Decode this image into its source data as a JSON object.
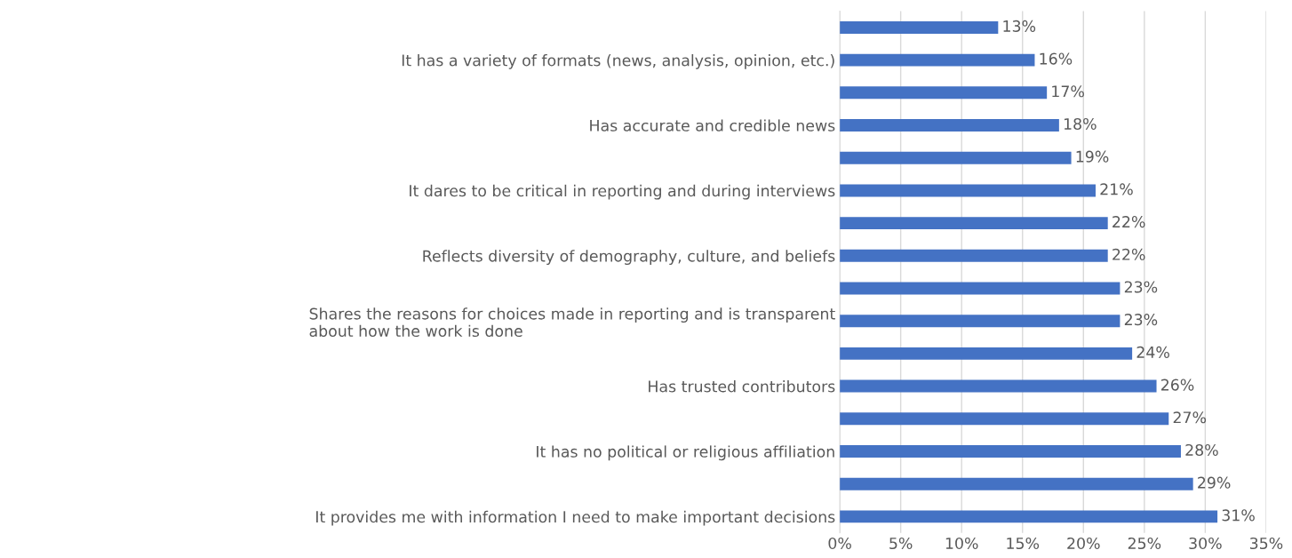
{
  "chart_data": {
    "type": "bar",
    "orientation": "horizontal",
    "categories": [
      null,
      "It has a variety of formats (news, analysis, opinion, etc.)",
      null,
      "Has accurate and credible news",
      null,
      "It dares to be critical in reporting and during interviews",
      null,
      "Reflects diversity of demography, culture, and beliefs",
      null,
      "Shares the reasons for choices made in reporting and is transparent\nabout how the work is done",
      null,
      "Has trusted contributors",
      null,
      "It has no political or religious affiliation",
      null,
      "It provides me with information I need to make important decisions"
    ],
    "values": [
      13,
      16,
      17,
      18,
      19,
      21,
      22,
      22,
      23,
      23,
      24,
      26,
      27,
      28,
      29,
      31
    ],
    "value_labels": [
      "13%",
      "16%",
      "17%",
      "18%",
      "19%",
      "21%",
      "22%",
      "22%",
      "23%",
      "23%",
      "24%",
      "26%",
      "27%",
      "28%",
      "29%",
      "31%"
    ],
    "color": "#4472c4",
    "xlim": [
      0,
      35
    ],
    "xticks": [
      {
        "value": 0,
        "label": "0%"
      },
      {
        "value": 5,
        "label": "5%"
      },
      {
        "value": 10,
        "label": "10%"
      },
      {
        "value": 15,
        "label": "15%"
      },
      {
        "value": 20,
        "label": "20%"
      },
      {
        "value": 25,
        "label": "25%"
      },
      {
        "value": 30,
        "label": "30%"
      },
      {
        "value": 35,
        "label": "35%"
      }
    ],
    "grid": "x"
  }
}
